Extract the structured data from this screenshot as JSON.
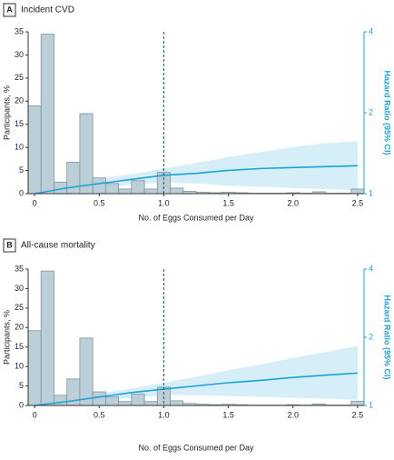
{
  "chart_data": [
    {
      "type": "histogram",
      "panel_label": "A",
      "title": "Incident CVD",
      "x_label": "No. of Eggs Consumed per Day",
      "y_label": "Participants, %",
      "y2_label": "Hazard Ratio (95% CI)",
      "bins": [
        -0.05,
        0.05,
        0.15,
        0.25,
        0.35,
        0.45,
        0.55,
        0.65,
        0.75,
        0.85,
        0.95,
        1.05,
        1.15,
        1.25,
        1.35,
        1.45,
        1.55,
        1.65,
        1.75,
        1.85,
        1.95,
        2.05,
        2.15,
        2.25,
        2.35,
        2.45,
        2.55
      ],
      "values": [
        19,
        34.5,
        2.5,
        6.8,
        17.3,
        3.4,
        2.2,
        1.0,
        2.8,
        1.0,
        4.6,
        1.2,
        0.5,
        0.3,
        0.2,
        0.3,
        0.2,
        0.1,
        0.1,
        0.1,
        0.2,
        0.1,
        0.4,
        0.1,
        0.1,
        1.0
      ],
      "color": "#bccfd8",
      "hazard": {
        "axis": "y2",
        "color": "#1ba3d6",
        "x": [
          0,
          0.25,
          0.5,
          0.75,
          1.0,
          1.25,
          1.5,
          1.75,
          2.0,
          2.25,
          2.5
        ],
        "values": [
          1.0,
          1.05,
          1.09,
          1.13,
          1.17,
          1.19,
          1.22,
          1.24,
          1.25,
          1.26,
          1.27
        ],
        "lower": [
          1.0,
          1.02,
          1.05,
          1.08,
          1.1,
          1.09,
          1.07,
          1.06,
          1.05,
          1.04,
          1.03
        ],
        "upper": [
          1.0,
          1.09,
          1.14,
          1.18,
          1.24,
          1.3,
          1.37,
          1.43,
          1.49,
          1.54,
          1.57
        ]
      },
      "vline": 1,
      "xlim": [
        -0.05,
        2.55
      ],
      "xticks": [
        0,
        0.5,
        {
          "value": 1,
          "label": "1.0"
        },
        1.5,
        {
          "value": 2,
          "label": "2.0"
        },
        2.5
      ],
      "ylim": [
        0,
        35
      ],
      "yticks": [
        0,
        5,
        10,
        15,
        20,
        25,
        30,
        35
      ],
      "y2lim": [
        1,
        4
      ],
      "y2ticks": [
        1,
        2,
        4
      ],
      "y2log": true
    },
    {
      "type": "histogram",
      "panel_label": "B",
      "title": "All-cause mortality",
      "x_label": "No. of Eggs Consumed per Day",
      "y_label": "Participants, %",
      "y2_label": "Hazard Ratio (95% CI)",
      "bins": [
        -0.05,
        0.05,
        0.15,
        0.25,
        0.35,
        0.45,
        0.55,
        0.65,
        0.75,
        0.85,
        0.95,
        1.05,
        1.15,
        1.25,
        1.35,
        1.45,
        1.55,
        1.65,
        1.75,
        1.85,
        1.95,
        2.05,
        2.15,
        2.25,
        2.35,
        2.45,
        2.55
      ],
      "values": [
        19.2,
        34.5,
        2.6,
        6.8,
        17.3,
        3.5,
        2.2,
        1.0,
        2.9,
        1.0,
        4.7,
        1.2,
        0.5,
        0.3,
        0.2,
        0.3,
        0.2,
        0.1,
        0.1,
        0.1,
        0.2,
        0.1,
        0.4,
        0.1,
        0.1,
        1.1
      ],
      "color": "#bccfd8",
      "hazard": {
        "axis": "y2",
        "color": "#1ba3d6",
        "x": [
          0,
          0.25,
          0.5,
          0.75,
          1.0,
          1.25,
          1.5,
          1.75,
          2.0,
          2.25,
          2.5
        ],
        "values": [
          1.0,
          1.04,
          1.09,
          1.14,
          1.18,
          1.22,
          1.26,
          1.29,
          1.33,
          1.36,
          1.39
        ],
        "lower": [
          1.0,
          1.02,
          1.05,
          1.08,
          1.11,
          1.11,
          1.1,
          1.09,
          1.08,
          1.07,
          1.06
        ],
        "upper": [
          1.0,
          1.07,
          1.13,
          1.19,
          1.26,
          1.34,
          1.43,
          1.52,
          1.62,
          1.72,
          1.83
        ]
      },
      "vline": 1,
      "xlim": [
        -0.05,
        2.55
      ],
      "xticks": [
        0,
        0.5,
        {
          "value": 1,
          "label": "1.0"
        },
        1.5,
        {
          "value": 2,
          "label": "2.0"
        },
        2.5
      ],
      "ylim": [
        0,
        35
      ],
      "yticks": [
        0,
        5,
        10,
        15,
        20,
        25,
        30,
        35
      ],
      "y2lim": [
        1,
        4
      ],
      "y2ticks": [
        1,
        2,
        4
      ],
      "y2log": true
    }
  ]
}
